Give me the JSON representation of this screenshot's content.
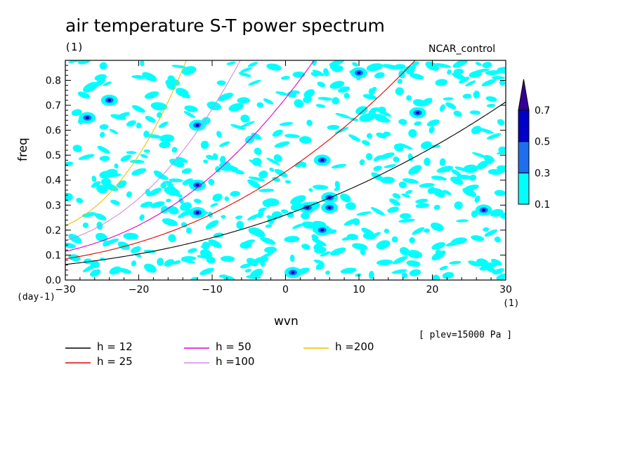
{
  "title": "air temperature S-T power spectrum",
  "units_top": "(1)",
  "run_name": "NCAR_control",
  "level_note": "[ plev=15000 Pa ]",
  "chart_data": {
    "type": "heatmap",
    "title": "air temperature S-T power spectrum",
    "xlabel": "wvn",
    "ylabel": "freq",
    "x_unit": "(1)",
    "y_unit": "(day-1)",
    "xlim": [
      -30,
      30
    ],
    "ylim": [
      0,
      0.88
    ],
    "x_ticks": [
      -30,
      -20,
      -10,
      0,
      10,
      20,
      30
    ],
    "y_ticks": [
      0.0,
      0.1,
      0.2,
      0.3,
      0.4,
      0.5,
      0.6,
      0.7,
      0.8
    ],
    "colorbar": {
      "levels": [
        "0.1",
        "0.3",
        "0.5",
        "0.7"
      ],
      "colors": [
        "#00ffff",
        "#1e6ff0",
        "#0000c8",
        "#330099"
      ]
    },
    "dispersion_curves": [
      {
        "label": "h = 12",
        "h": 12,
        "color": "#000000"
      },
      {
        "label": "h = 25",
        "h": 25,
        "color": "#e00000"
      },
      {
        "label": "h = 50",
        "h": 50,
        "color": "#e000c8"
      },
      {
        "label": "h =100",
        "h": 100,
        "color": "#d08ce0"
      },
      {
        "label": "h =200",
        "h": 200,
        "color": "#f0c000"
      }
    ],
    "notable_peaks": [
      {
        "wvn": 1,
        "freq": 0.03
      },
      {
        "wvn": 6,
        "freq": 0.33
      },
      {
        "wvn": 6,
        "freq": 0.29
      },
      {
        "wvn": 5,
        "freq": 0.2
      },
      {
        "wvn": 3,
        "freq": 0.29
      },
      {
        "wvn": -12,
        "freq": 0.27
      },
      {
        "wvn": 10,
        "freq": 0.83
      },
      {
        "wvn": -24,
        "freq": 0.72
      },
      {
        "wvn": -27,
        "freq": 0.65
      },
      {
        "wvn": 18,
        "freq": 0.67
      },
      {
        "wvn": -12,
        "freq": 0.38
      },
      {
        "wvn": 5,
        "freq": 0.48
      },
      {
        "wvn": -12,
        "freq": 0.62
      },
      {
        "wvn": 27,
        "freq": 0.28
      }
    ]
  }
}
